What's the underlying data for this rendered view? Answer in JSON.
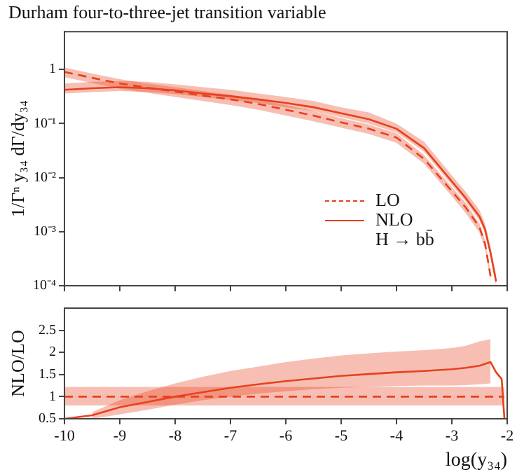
{
  "chart_data": [
    {
      "type": "line",
      "title": "Durham four-to-three-jet transition variable",
      "ylabel": "1/Γⁿ y₃₄ dΓ/dy₃₄",
      "log": true,
      "legend": "bottom right",
      "tick_labels": "y",
      "annotations": [
        "H → bb̄"
      ],
      "xlim": [
        -10,
        -2
      ],
      "xticks": [
        -10,
        -9,
        -8,
        -7,
        -6,
        -5,
        -4,
        -3,
        -2
      ],
      "ylim": [
        0.0001,
        5
      ],
      "yticks": [
        {
          "value": 1,
          "label": "1"
        },
        {
          "value": 0.1,
          "label": "10⁻¹"
        },
        {
          "value": 0.01,
          "label": "10⁻²"
        },
        {
          "value": 0.001,
          "label": "10⁻³"
        },
        {
          "value": 0.0001,
          "label": "10⁻⁴"
        }
      ],
      "x": [
        -10,
        -9.5,
        -9,
        -8.5,
        -8,
        -7.5,
        -7,
        -6.5,
        -6,
        -5.5,
        -5,
        -4.5,
        -4,
        -3.5,
        -3,
        -2.75,
        -2.5,
        -2.4,
        -2.3,
        -2.2
      ],
      "series": [
        {
          "name": "LO",
          "color": "#e8401c",
          "line_style": "dashed",
          "values": [
            0.9,
            0.7,
            0.55,
            0.46,
            0.39,
            0.33,
            0.28,
            0.23,
            0.18,
            0.14,
            0.105,
            0.08,
            0.055,
            0.022,
            0.0056,
            0.0028,
            0.0012,
            0.0006,
            0.00015,
            null
          ],
          "lower": [
            0.72,
            0.56,
            0.44,
            0.37,
            0.31,
            0.26,
            0.22,
            0.18,
            0.14,
            0.11,
            0.084,
            0.064,
            0.044,
            0.018,
            0.0045,
            0.0022,
            0.00096,
            0.00048,
            0.00012,
            null
          ],
          "upper": [
            1.08,
            0.84,
            0.66,
            0.55,
            0.47,
            0.4,
            0.34,
            0.28,
            0.22,
            0.17,
            0.126,
            0.096,
            0.066,
            0.026,
            0.0067,
            0.0034,
            0.0014,
            0.0007,
            0.00018,
            null
          ]
        },
        {
          "name": "NLO",
          "color": "#e8401c",
          "line_style": "solid",
          "values": [
            0.42,
            0.45,
            0.47,
            0.45,
            0.41,
            0.36,
            0.32,
            0.28,
            0.24,
            0.2,
            0.155,
            0.12,
            0.08,
            0.035,
            0.0085,
            0.0042,
            0.0019,
            0.0011,
            0.0004,
            0.00012
          ],
          "lower": [
            0.36,
            0.38,
            0.4,
            0.38,
            0.35,
            0.31,
            0.27,
            0.24,
            0.2,
            0.17,
            0.13,
            0.1,
            0.068,
            0.03,
            0.0072,
            0.0036,
            0.0016,
            0.00094,
            0.00034,
            0.0001
          ],
          "upper": [
            0.55,
            0.59,
            0.61,
            0.59,
            0.53,
            0.47,
            0.42,
            0.36,
            0.31,
            0.26,
            0.2,
            0.16,
            0.1,
            0.046,
            0.011,
            0.0055,
            0.0025,
            0.0014,
            0.00052,
            0.00016
          ]
        }
      ]
    },
    {
      "type": "line",
      "xlabel": "log(y₃₄)",
      "ylabel": "NLO/LO",
      "xlim": [
        -10,
        -2
      ],
      "xticks": [
        -10,
        -9,
        -8,
        -7,
        -6,
        -5,
        -4,
        -3,
        -2
      ],
      "ylim": [
        0.5,
        3
      ],
      "yticks": [
        0.5,
        1,
        1.5,
        2,
        2.5
      ],
      "series": [
        {
          "color": "#e8401c",
          "line_style": "dashed",
          "x": [
            -10,
            -2.05
          ],
          "values": [
            1,
            1
          ],
          "lower": [
            0.8,
            0.8
          ],
          "upper": [
            1.22,
            1.22
          ]
        },
        {
          "color": "#e8401c",
          "line_style": "solid",
          "x": [
            -10,
            -9.5,
            -9,
            -8.5,
            -8,
            -7.5,
            -7,
            -6.5,
            -6,
            -5.5,
            -5,
            -4.5,
            -4,
            -3.5,
            -3,
            -2.75,
            -2.5,
            -2.3,
            -2.2,
            -2.1,
            -2.05
          ],
          "values": [
            0.5,
            0.58,
            0.76,
            0.88,
            1.0,
            1.1,
            1.2,
            1.28,
            1.35,
            1.41,
            1.47,
            1.51,
            1.55,
            1.58,
            1.62,
            1.65,
            1.7,
            1.78,
            1.55,
            1.4,
            0.5
          ],
          "lower": [
            null,
            0.5,
            0.6,
            0.7,
            0.82,
            0.92,
            1.0,
            1.07,
            1.12,
            1.17,
            1.2,
            1.22,
            1.24,
            1.25,
            1.25,
            1.26,
            1.28,
            1.3,
            null,
            null,
            null
          ],
          "upper": [
            null,
            0.65,
            0.92,
            1.12,
            1.3,
            1.45,
            1.58,
            1.68,
            1.78,
            1.86,
            1.93,
            1.98,
            2.02,
            2.05,
            2.1,
            2.15,
            2.25,
            2.3,
            null,
            null,
            null
          ]
        }
      ]
    }
  ]
}
